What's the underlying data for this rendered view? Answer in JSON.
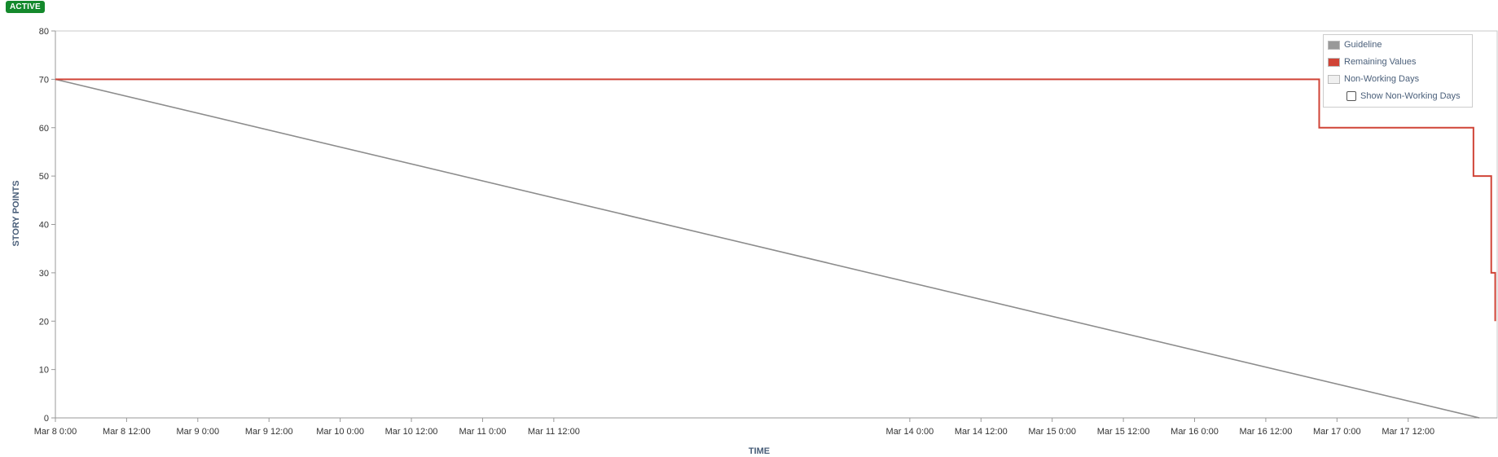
{
  "status_badge": "ACTIVE",
  "legend": {
    "items": [
      {
        "label": "Guideline",
        "color": "#999999"
      },
      {
        "label": "Remaining Values",
        "color": "#d04437"
      },
      {
        "label": "Non-Working Days",
        "color": "#f0f0f0"
      }
    ],
    "toggle_label": "Show Non-Working Days",
    "toggle_checked": false
  },
  "chart_data": {
    "type": "line",
    "xlabel": "TIME",
    "ylabel": "STORY POINTS",
    "ylim": [
      0,
      80
    ],
    "yticks": [
      0,
      10,
      20,
      30,
      40,
      50,
      60,
      70,
      80
    ],
    "xlim": [
      "Mar 8 0:00",
      "Mar 18 3:00"
    ],
    "xticks": [
      "Mar 8 0:00",
      "Mar 8 12:00",
      "Mar 9 0:00",
      "Mar 9 12:00",
      "Mar 10 0:00",
      "Mar 10 12:00",
      "Mar 11 0:00",
      "Mar 11 12:00",
      "Mar 14 0:00",
      "Mar 14 12:00",
      "Mar 15 0:00",
      "Mar 15 12:00",
      "Mar 16 0:00",
      "Mar 16 12:00",
      "Mar 17 0:00",
      "Mar 17 12:00"
    ],
    "grid": false,
    "legend_position": "top-right",
    "series": [
      {
        "name": "Guideline",
        "color": "#8c8c8c",
        "x": [
          "Mar 8 0:00",
          "Mar 18 0:00"
        ],
        "y": [
          70,
          0
        ]
      },
      {
        "name": "Remaining Values",
        "color": "#d04437",
        "step": true,
        "x": [
          "Mar 8 0:00",
          "Mar 16 21:00",
          "Mar 17 23:00",
          "Mar 18 2:00",
          "Mar 18 2:40"
        ],
        "y": [
          70,
          60,
          50,
          30,
          20
        ]
      }
    ]
  }
}
